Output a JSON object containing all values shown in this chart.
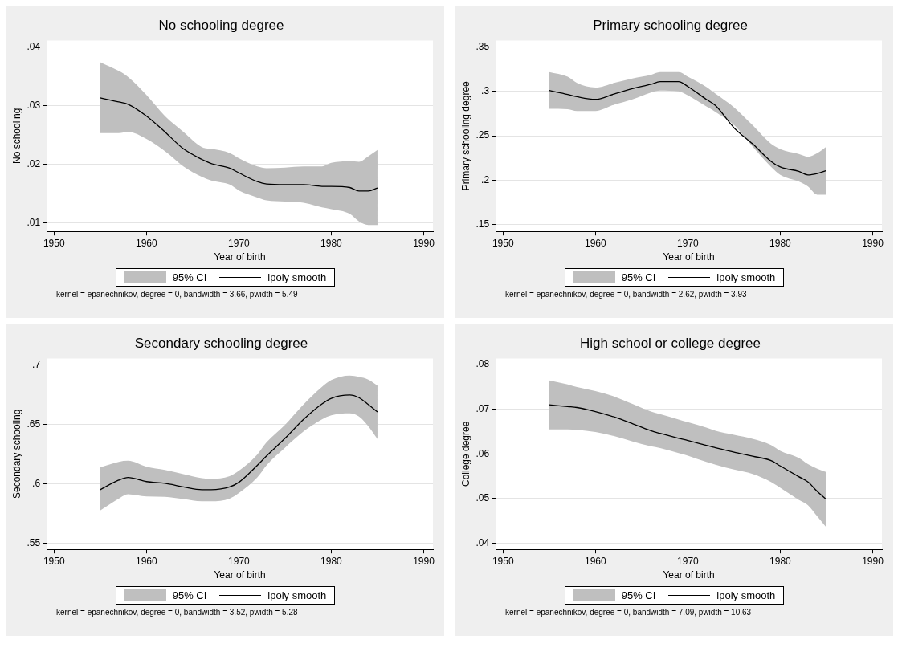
{
  "chart_data": [
    {
      "type": "line",
      "title": "No schooling degree",
      "xlabel": "Year of birth",
      "ylabel": "No schooling",
      "legend_title": "95% CI",
      "grid": "y",
      "legend": "bottom",
      "marker": "none",
      "line_style": "solid",
      "xlim": [
        1949.2,
        1991
      ],
      "xticks": [
        1950,
        1960,
        1970,
        1980,
        1990
      ],
      "ylim": [
        0.0085,
        0.0411
      ],
      "yticks": [
        {
          "value": 0.01,
          "label": ".01"
        },
        {
          "value": 0.02,
          "label": ".02"
        },
        {
          "value": 0.03,
          "label": ".03"
        },
        {
          "value": 0.04,
          "label": ".04"
        }
      ],
      "x": [
        1955,
        1957,
        1958,
        1960,
        1962,
        1964,
        1966,
        1967,
        1969,
        1970,
        1972,
        1973,
        1975,
        1977,
        1979,
        1980,
        1982,
        1983,
        1984,
        1985
      ],
      "series": [
        {
          "name": "lpoly smooth",
          "type": "line",
          "color": "#000000",
          "values": [
            0.0313,
            0.0306,
            0.0302,
            0.0282,
            0.0255,
            0.0226,
            0.0208,
            0.0201,
            0.0193,
            0.0185,
            0.017,
            0.0166,
            0.0165,
            0.0165,
            0.0162,
            0.0162,
            0.016,
            0.0154,
            0.0154,
            0.0159
          ],
          "upper": [
            0.0374,
            0.0359,
            0.0349,
            0.0318,
            0.0282,
            0.0255,
            0.0229,
            0.0226,
            0.0219,
            0.021,
            0.0196,
            0.0193,
            0.0194,
            0.0196,
            0.0196,
            0.0202,
            0.0205,
            0.0204,
            0.0213,
            0.0224
          ],
          "lower": [
            0.0253,
            0.0253,
            0.0255,
            0.0243,
            0.0222,
            0.0196,
            0.0178,
            0.0172,
            0.0165,
            0.0155,
            0.0143,
            0.0138,
            0.0136,
            0.0134,
            0.0126,
            0.0123,
            0.0115,
            0.0102,
            0.0096,
            0.0096
          ]
        }
      ],
      "annotations": [
        "kernel = epanechnikov, degree = 0, bandwidth = 3.66, pwidth = 5.49"
      ]
    },
    {
      "type": "line",
      "title": "Primary schooling degree",
      "xlabel": "Year of birth",
      "ylabel": "Primary schooling degree",
      "legend_title": "95% CI",
      "grid": "y",
      "legend": "bottom",
      "marker": "none",
      "line_style": "solid",
      "xlim": [
        1949.2,
        1991
      ],
      "xticks": [
        1950,
        1960,
        1970,
        1980,
        1990
      ],
      "ylim": [
        0.1424,
        0.3573
      ],
      "yticks": [
        {
          "value": 0.15,
          "label": ".15"
        },
        {
          "value": 0.2,
          "label": ".2"
        },
        {
          "value": 0.25,
          "label": ".25"
        },
        {
          "value": 0.3,
          "label": ".3"
        },
        {
          "value": 0.35,
          "label": ".35"
        }
      ],
      "x": [
        1955,
        1957,
        1958,
        1960,
        1962,
        1964,
        1966,
        1967,
        1969,
        1970,
        1972,
        1973,
        1975,
        1977,
        1979,
        1980,
        1982,
        1983,
        1984,
        1985
      ],
      "series": [
        {
          "name": "lpoly smooth",
          "type": "line",
          "color": "#000000",
          "values": [
            0.301,
            0.2966,
            0.294,
            0.291,
            0.297,
            0.303,
            0.308,
            0.311,
            0.311,
            0.3055,
            0.291,
            0.284,
            0.259,
            0.241,
            0.2213,
            0.215,
            0.21,
            0.206,
            0.2076,
            0.211
          ],
          "upper": [
            0.3217,
            0.3165,
            0.3095,
            0.3043,
            0.3095,
            0.3146,
            0.3186,
            0.3217,
            0.3217,
            0.3165,
            0.305,
            0.2973,
            0.282,
            0.262,
            0.241,
            0.235,
            0.2296,
            0.2265,
            0.2305,
            0.238
          ],
          "lower": [
            0.2805,
            0.28,
            0.278,
            0.278,
            0.285,
            0.291,
            0.2988,
            0.301,
            0.3,
            0.2955,
            0.283,
            0.2768,
            0.262,
            0.238,
            0.2152,
            0.206,
            0.1985,
            0.193,
            0.1838,
            0.1838
          ]
        }
      ],
      "annotations": [
        "kernel = epanechnikov, degree = 0, bandwidth = 2.62, pwidth = 3.93"
      ]
    },
    {
      "type": "line",
      "title": "Secondary schooling degree",
      "xlabel": "Year of birth",
      "ylabel": "Secondary schooling",
      "legend_title": "95% CI",
      "grid": "y",
      "legend": "bottom",
      "marker": "none",
      "line_style": "solid",
      "xlim": [
        1949.2,
        1991
      ],
      "xticks": [
        1950,
        1960,
        1970,
        1980,
        1990
      ],
      "ylim": [
        0.545,
        0.7055
      ],
      "yticks": [
        {
          "value": 0.55,
          "label": ".55"
        },
        {
          "value": 0.6,
          "label": ".6"
        },
        {
          "value": 0.65,
          "label": ".65"
        },
        {
          "value": 0.7,
          "label": ".7"
        }
      ],
      "x": [
        1955,
        1957,
        1958,
        1960,
        1962,
        1964,
        1966,
        1967,
        1969,
        1970,
        1972,
        1973,
        1975,
        1977,
        1979,
        1980,
        1982,
        1983,
        1984,
        1985
      ],
      "series": [
        {
          "name": "lpoly smooth",
          "type": "line",
          "color": "#000000",
          "values": [
            0.5952,
            0.6032,
            0.6055,
            0.602,
            0.6005,
            0.5975,
            0.5952,
            0.5952,
            0.5975,
            0.6014,
            0.6157,
            0.6236,
            0.6384,
            0.6543,
            0.6673,
            0.672,
            0.6748,
            0.6725,
            0.6668,
            0.6605
          ],
          "upper": [
            0.6139,
            0.6186,
            0.6195,
            0.6145,
            0.6118,
            0.6082,
            0.6048,
            0.6043,
            0.6066,
            0.6111,
            0.6248,
            0.635,
            0.6498,
            0.6668,
            0.6816,
            0.6873,
            0.6911,
            0.69,
            0.6877,
            0.6827
          ],
          "lower": [
            0.5777,
            0.5877,
            0.5914,
            0.5895,
            0.5891,
            0.5873,
            0.5855,
            0.5855,
            0.5877,
            0.5923,
            0.6055,
            0.6157,
            0.6305,
            0.6441,
            0.6543,
            0.6577,
            0.6593,
            0.6566,
            0.6486,
            0.6377
          ]
        }
      ],
      "annotations": [
        "kernel = epanechnikov, degree = 0, bandwidth = 3.52, pwidth = 5.28"
      ]
    },
    {
      "type": "line",
      "title": "High school or college degree",
      "xlabel": "Year of birth",
      "ylabel": "College degree",
      "legend_title": "95% CI",
      "grid": "y",
      "legend": "bottom",
      "marker": "none",
      "line_style": "solid",
      "xlim": [
        1949.2,
        1991
      ],
      "xticks": [
        1950,
        1960,
        1970,
        1980,
        1990
      ],
      "ylim": [
        0.0386,
        0.0814
      ],
      "yticks": [
        {
          "value": 0.04,
          "label": ".04"
        },
        {
          "value": 0.05,
          "label": ".05"
        },
        {
          "value": 0.06,
          "label": ".06"
        },
        {
          "value": 0.07,
          "label": ".07"
        },
        {
          "value": 0.08,
          "label": ".08"
        }
      ],
      "x": [
        1955,
        1957,
        1958,
        1960,
        1962,
        1964,
        1966,
        1967,
        1969,
        1970,
        1972,
        1973,
        1975,
        1977,
        1979,
        1980,
        1982,
        1983,
        1984,
        1985
      ],
      "series": [
        {
          "name": "lpoly smooth",
          "type": "line",
          "color": "#000000",
          "values": [
            0.071,
            0.0706,
            0.0704,
            0.0695,
            0.0683,
            0.0668,
            0.0652,
            0.0646,
            0.0635,
            0.063,
            0.0619,
            0.0614,
            0.0604,
            0.0595,
            0.0585,
            0.0573,
            0.0549,
            0.0537,
            0.0516,
            0.0498
          ],
          "upper": [
            0.0765,
            0.0756,
            0.075,
            0.0741,
            0.0729,
            0.0712,
            0.0695,
            0.0689,
            0.0677,
            0.0671,
            0.0659,
            0.0652,
            0.0643,
            0.0634,
            0.062,
            0.0607,
            0.0591,
            0.0577,
            0.0567,
            0.0559
          ],
          "lower": [
            0.0655,
            0.0655,
            0.0654,
            0.0649,
            0.064,
            0.0628,
            0.0617,
            0.0613,
            0.0602,
            0.0596,
            0.0582,
            0.0576,
            0.0565,
            0.0555,
            0.0537,
            0.0524,
            0.0497,
            0.0485,
            0.046,
            0.0435
          ]
        }
      ],
      "annotations": [
        "kernel = epanechnikov, degree = 0, bandwidth = 7.09, pwidth = 10.63"
      ]
    }
  ]
}
